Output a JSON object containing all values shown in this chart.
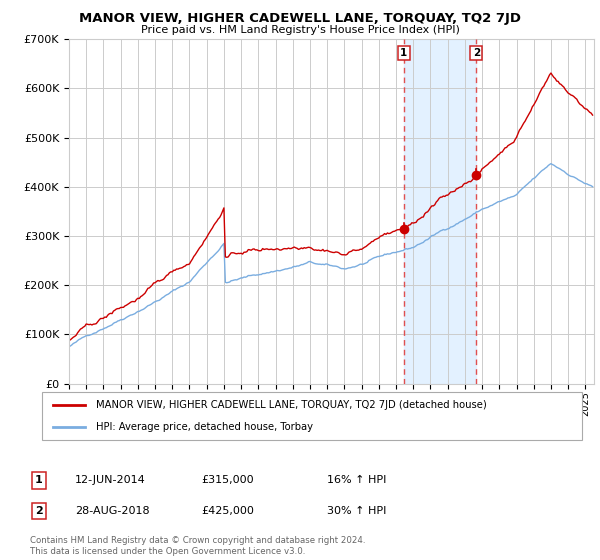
{
  "title": "MANOR VIEW, HIGHER CADEWELL LANE, TORQUAY, TQ2 7JD",
  "subtitle": "Price paid vs. HM Land Registry's House Price Index (HPI)",
  "legend_label_red": "MANOR VIEW, HIGHER CADEWELL LANE, TORQUAY, TQ2 7JD (detached house)",
  "legend_label_blue": "HPI: Average price, detached house, Torbay",
  "transaction1_date": "12-JUN-2014",
  "transaction1_price": "£315,000",
  "transaction1_hpi": "16% ↑ HPI",
  "transaction2_date": "28-AUG-2018",
  "transaction2_price": "£425,000",
  "transaction2_hpi": "30% ↑ HPI",
  "footnote": "Contains HM Land Registry data © Crown copyright and database right 2024.\nThis data is licensed under the Open Government Licence v3.0.",
  "red_color": "#cc0000",
  "blue_color": "#7aade0",
  "background_color": "#ffffff",
  "grid_color": "#cccccc",
  "shade_color": "#ddeeff",
  "dashed_color": "#e05050",
  "marker1_x": 2014.44,
  "marker1_y": 315000,
  "marker2_x": 2018.66,
  "marker2_y": 425000,
  "vline1_x": 2014.44,
  "vline2_x": 2018.66,
  "ylim": [
    0,
    700000
  ],
  "yticks": [
    0,
    100000,
    200000,
    300000,
    400000,
    500000,
    600000,
    700000
  ],
  "ytick_labels": [
    "£0",
    "£100K",
    "£200K",
    "£300K",
    "£400K",
    "£500K",
    "£600K",
    "£700K"
  ],
  "xlim_start": 1995.0,
  "xlim_end": 2025.5
}
